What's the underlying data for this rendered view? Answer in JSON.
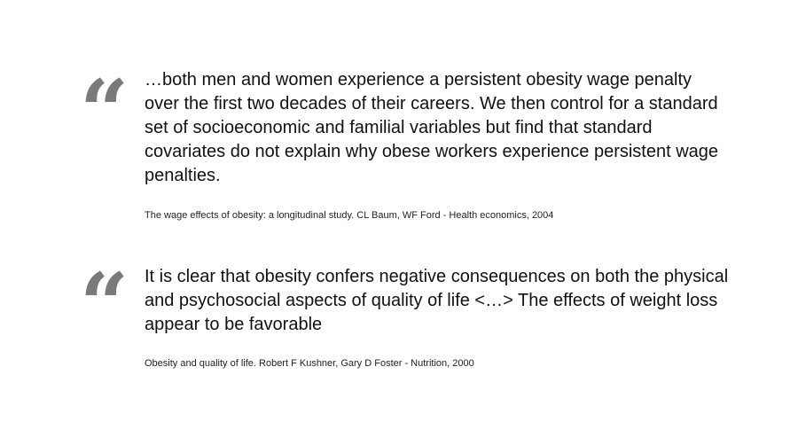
{
  "quotes": [
    {
      "mark": "“",
      "text": "…both men and women experience a persistent obesity wage penalty over the first two decades of their careers. We then control for a standard set of socioeconomic and familial variables but find that standard covariates do not explain why obese workers experience persistent wage penalties.",
      "citation": "The wage effects of obesity: a longitudinal study. CL Baum, WF Ford - Health economics, 2004"
    },
    {
      "mark": "“",
      "text": "It is clear that obesity confers negative consequences on both the physical and psychosocial aspects of quality of life <…> The effects of weight loss appear to be favorable",
      "citation": "Obesity and quality of life. Robert F Kushner, Gary D Foster - Nutrition, 2000"
    }
  ],
  "colors": {
    "quote_mark": "#7a7a7a",
    "text": "#111111",
    "background": "#ffffff"
  }
}
